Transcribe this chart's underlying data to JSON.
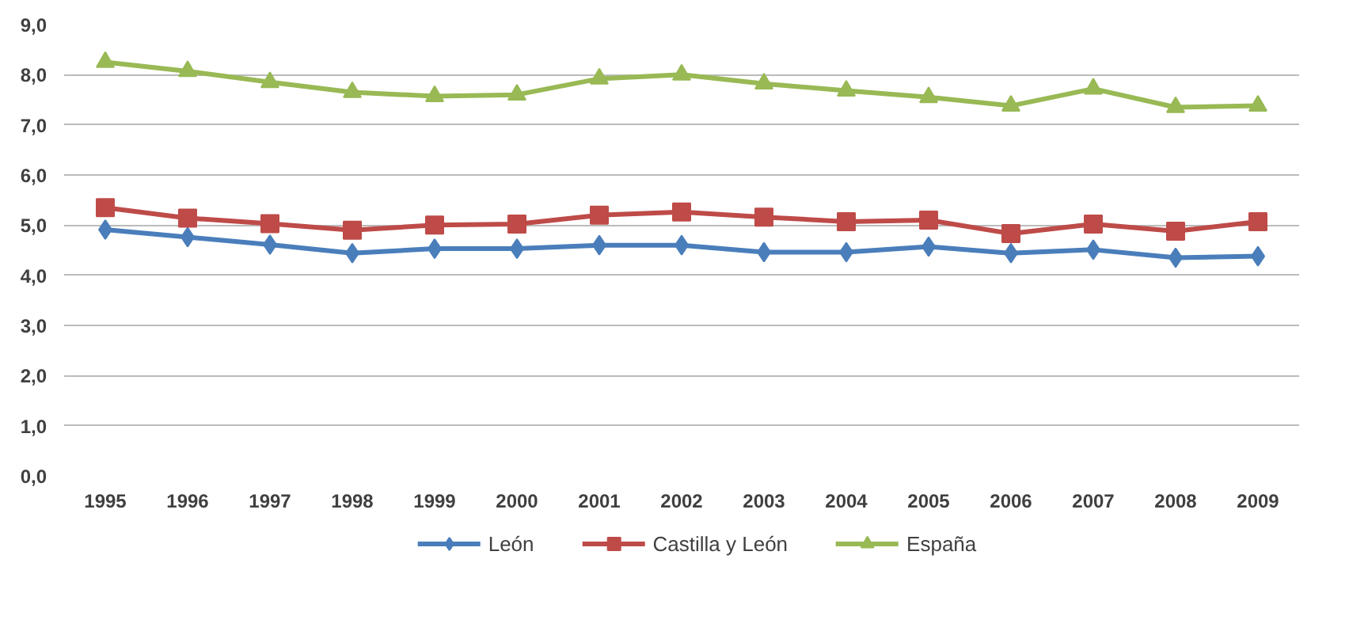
{
  "chart_data": {
    "type": "line",
    "categories": [
      "1995",
      "1996",
      "1997",
      "1998",
      "1999",
      "2000",
      "2001",
      "2002",
      "2003",
      "2004",
      "2005",
      "2006",
      "2007",
      "2008",
      "2009"
    ],
    "series": [
      {
        "name": "León",
        "color": "#4a7ebb",
        "marker": "diamond",
        "values": [
          4.91,
          4.76,
          4.61,
          4.44,
          4.53,
          4.53,
          4.6,
          4.6,
          4.46,
          4.46,
          4.57,
          4.44,
          4.51,
          4.35,
          4.38
        ]
      },
      {
        "name": "Castilla y León",
        "color": "#be4b48",
        "marker": "square",
        "values": [
          5.35,
          5.14,
          5.03,
          4.9,
          5.0,
          5.02,
          5.2,
          5.26,
          5.16,
          5.07,
          5.1,
          4.83,
          5.02,
          4.88,
          5.07
        ]
      },
      {
        "name": "España",
        "color": "#98b954",
        "marker": "triangle",
        "values": [
          8.25,
          8.07,
          7.85,
          7.65,
          7.57,
          7.6,
          7.92,
          8.0,
          7.82,
          7.68,
          7.55,
          7.38,
          7.72,
          7.35,
          7.38
        ]
      }
    ],
    "ylim": [
      0,
      9
    ],
    "yticks": [
      {
        "value": 0,
        "label": "0,0"
      },
      {
        "value": 1,
        "label": "1,0"
      },
      {
        "value": 2,
        "label": "2,0"
      },
      {
        "value": 3,
        "label": "3,0"
      },
      {
        "value": 4,
        "label": "4,0"
      },
      {
        "value": 5,
        "label": "5,0"
      },
      {
        "value": 6,
        "label": "6,0"
      },
      {
        "value": 7,
        "label": "7,0"
      },
      {
        "value": 8,
        "label": "8,0"
      },
      {
        "value": 9,
        "label": "9,0"
      }
    ],
    "grid": "y",
    "legend": "bottom",
    "line_style": "solid"
  }
}
